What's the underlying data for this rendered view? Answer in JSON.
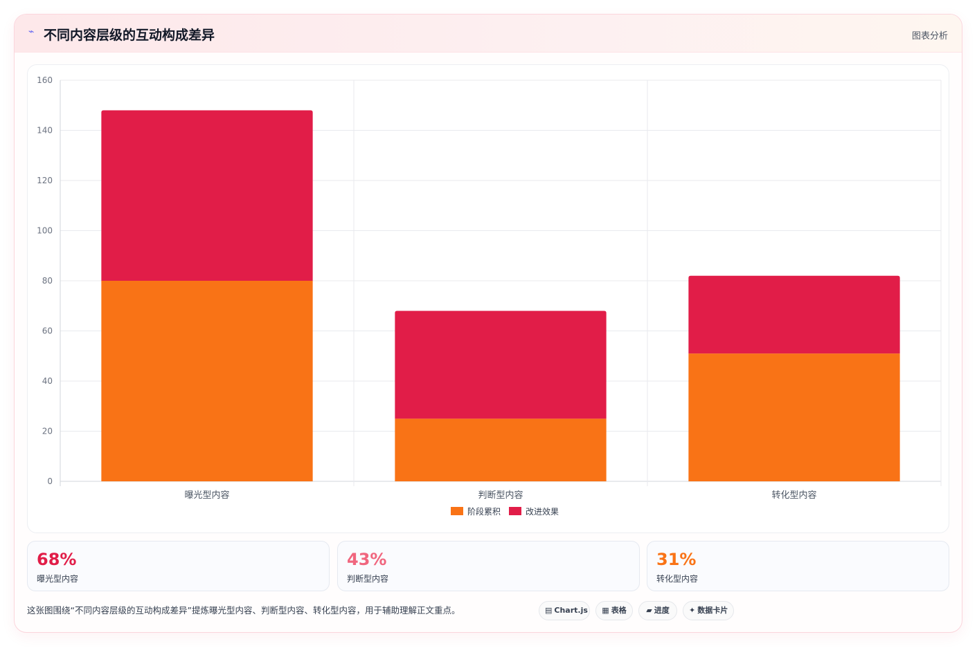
{
  "header": {
    "title": "不同内容层级的互动构成差异",
    "title_icon": "lightning-icon",
    "right_label": "图表分析"
  },
  "chart_data": {
    "type": "bar",
    "stacked": true,
    "categories": [
      "曝光型内容",
      "判断型内容",
      "转化型内容"
    ],
    "series": [
      {
        "name": "阶段累积",
        "color": "#f97316",
        "values": [
          80,
          25,
          51
        ]
      },
      {
        "name": "改进效果",
        "color": "#e11d48",
        "values": [
          68,
          43,
          31
        ]
      }
    ],
    "ylim": [
      0,
      160
    ],
    "yticks": [
      0,
      20,
      40,
      60,
      80,
      100,
      120,
      140,
      160
    ],
    "grid": true,
    "legend_position": "bottom-center"
  },
  "stats": [
    {
      "value": "68%",
      "label": "曝光型内容",
      "color": "#e11d48"
    },
    {
      "value": "43%",
      "label": "判断型内容",
      "color": "#f0667e"
    },
    {
      "value": "31%",
      "label": "转化型内容",
      "color": "#f97316"
    }
  ],
  "footer": {
    "text": "这张图围绕“不同内容层级的互动构成差异”提炼曝光型内容、判断型内容、转化型内容，用于辅助理解正文重点。"
  },
  "tags": [
    {
      "icon": "▤",
      "label": "Chart.js"
    },
    {
      "icon": "▦",
      "label": "表格"
    },
    {
      "icon": "▰",
      "label": "进度"
    },
    {
      "icon": "✦",
      "label": "数据卡片"
    }
  ]
}
